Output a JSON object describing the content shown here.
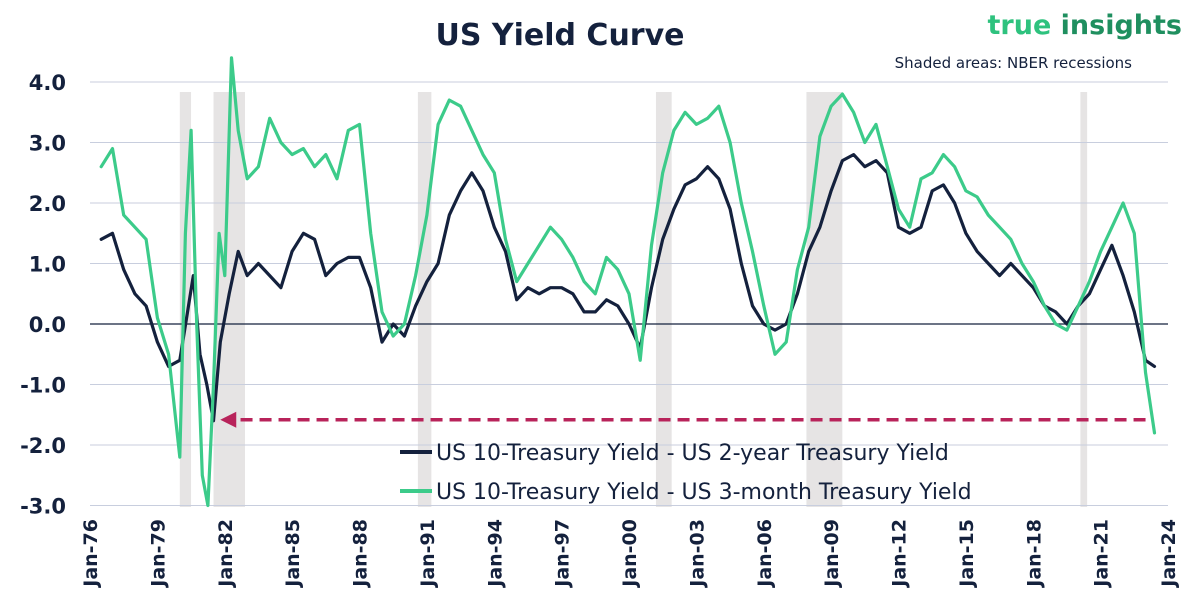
{
  "chart_data": {
    "type": "line",
    "title": "US Yield Curve",
    "note": "Shaded areas: NBER recessions",
    "brand": {
      "part1": "true ",
      "part2": "insights"
    },
    "ylim": [
      -3.0,
      4.5
    ],
    "yticks": [
      4.0,
      3.0,
      2.0,
      1.0,
      0.0,
      -1.0,
      -2.0,
      -3.0
    ],
    "ytick_labels": [
      "4.0",
      "3.0",
      "2.0",
      "1.0",
      "0.0",
      "-1.0",
      "-2.0",
      "-3.0"
    ],
    "xlim": [
      1976.0,
      2024.0
    ],
    "xticks": [
      1976,
      1979,
      1982,
      1985,
      1988,
      1991,
      1994,
      1997,
      2000,
      2003,
      2006,
      2009,
      2012,
      2015,
      2018,
      2021,
      2024
    ],
    "xtick_labels": [
      "Jan-76",
      "Jan-79",
      "Jan-82",
      "Jan-85",
      "Jan-88",
      "Jan-91",
      "Jan-94",
      "Jan-97",
      "Jan-00",
      "Jan-03",
      "Jan-06",
      "Jan-09",
      "Jan-12",
      "Jan-15",
      "Jan-18",
      "Jan-21",
      "Jan-24"
    ],
    "grid": true,
    "recessions": [
      [
        1980.0,
        1980.5
      ],
      [
        1981.5,
        1982.9
      ],
      [
        1990.6,
        1991.2
      ],
      [
        2001.2,
        2001.9
      ],
      [
        2007.9,
        2009.5
      ],
      [
        2020.1,
        2020.4
      ]
    ],
    "arrow": {
      "from_x": 2023.0,
      "to_x": 1981.8,
      "y": -1.5
    },
    "legend_position": "bottom-center",
    "colors": {
      "series_2y": "#14213d",
      "series_3m": "#3ccb8a",
      "recession": "#e6e4e4",
      "arrow": "#b8235a",
      "grid": "#c8cede",
      "zero": "#14213d"
    },
    "series": [
      {
        "name": "US 10-Treasury Yield - US 2-year Treasury Yield",
        "color": "#14213d",
        "x": [
          1976.5,
          1977.0,
          1977.5,
          1978.0,
          1978.5,
          1979.0,
          1979.5,
          1980.0,
          1980.3,
          1980.6,
          1980.9,
          1981.2,
          1981.5,
          1981.8,
          1982.2,
          1982.6,
          1983.0,
          1983.5,
          1984.0,
          1984.5,
          1985.0,
          1985.5,
          1986.0,
          1986.5,
          1987.0,
          1987.5,
          1988.0,
          1988.5,
          1989.0,
          1989.5,
          1990.0,
          1990.5,
          1991.0,
          1991.5,
          1992.0,
          1992.5,
          1993.0,
          1993.5,
          1994.0,
          1994.5,
          1995.0,
          1995.5,
          1996.0,
          1996.5,
          1997.0,
          1997.5,
          1998.0,
          1998.5,
          1999.0,
          1999.5,
          2000.0,
          2000.5,
          2001.0,
          2001.5,
          2002.0,
          2002.5,
          2003.0,
          2003.5,
          2004.0,
          2004.5,
          2005.0,
          2005.5,
          2006.0,
          2006.5,
          2007.0,
          2007.5,
          2008.0,
          2008.5,
          2009.0,
          2009.5,
          2010.0,
          2010.5,
          2011.0,
          2011.5,
          2012.0,
          2012.5,
          2013.0,
          2013.5,
          2014.0,
          2014.5,
          2015.0,
          2015.5,
          2016.0,
          2016.5,
          2017.0,
          2017.5,
          2018.0,
          2018.5,
          2019.0,
          2019.5,
          2020.0,
          2020.5,
          2021.0,
          2021.5,
          2022.0,
          2022.5,
          2023.0,
          2023.4
        ],
        "values": [
          1.4,
          1.5,
          0.9,
          0.5,
          0.3,
          -0.3,
          -0.7,
          -0.6,
          0.1,
          0.8,
          -0.5,
          -1.0,
          -1.6,
          -0.3,
          0.5,
          1.2,
          0.8,
          1.0,
          0.8,
          0.6,
          1.2,
          1.5,
          1.4,
          0.8,
          1.0,
          1.1,
          1.1,
          0.6,
          -0.3,
          0.0,
          -0.2,
          0.3,
          0.7,
          1.0,
          1.8,
          2.2,
          2.5,
          2.2,
          1.6,
          1.2,
          0.4,
          0.6,
          0.5,
          0.6,
          0.6,
          0.5,
          0.2,
          0.2,
          0.4,
          0.3,
          0.0,
          -0.4,
          0.6,
          1.4,
          1.9,
          2.3,
          2.4,
          2.6,
          2.4,
          1.9,
          1.0,
          0.3,
          0.0,
          -0.1,
          0.0,
          0.5,
          1.2,
          1.6,
          2.2,
          2.7,
          2.8,
          2.6,
          2.7,
          2.5,
          1.6,
          1.5,
          1.6,
          2.2,
          2.3,
          2.0,
          1.5,
          1.2,
          1.0,
          0.8,
          1.0,
          0.8,
          0.6,
          0.3,
          0.2,
          0.0,
          0.3,
          0.5,
          0.9,
          1.3,
          0.8,
          0.2,
          -0.6,
          -0.7
        ]
      },
      {
        "name": "US 10-Treasury Yield - US 3-month Treasury Yield",
        "color": "#3ccb8a",
        "x": [
          1976.5,
          1977.0,
          1977.5,
          1978.0,
          1978.5,
          1979.0,
          1979.5,
          1980.0,
          1980.25,
          1980.5,
          1980.75,
          1981.0,
          1981.25,
          1981.5,
          1981.75,
          1982.0,
          1982.3,
          1982.6,
          1983.0,
          1983.5,
          1984.0,
          1984.5,
          1985.0,
          1985.5,
          1986.0,
          1986.5,
          1987.0,
          1987.5,
          1988.0,
          1988.5,
          1989.0,
          1989.5,
          1990.0,
          1990.5,
          1991.0,
          1991.5,
          1992.0,
          1992.5,
          1993.0,
          1993.5,
          1994.0,
          1994.5,
          1995.0,
          1995.5,
          1996.0,
          1996.5,
          1997.0,
          1997.5,
          1998.0,
          1998.5,
          1999.0,
          1999.5,
          2000.0,
          2000.5,
          2001.0,
          2001.5,
          2002.0,
          2002.5,
          2003.0,
          2003.5,
          2004.0,
          2004.5,
          2005.0,
          2005.5,
          2006.0,
          2006.5,
          2007.0,
          2007.5,
          2008.0,
          2008.5,
          2009.0,
          2009.5,
          2010.0,
          2010.5,
          2011.0,
          2011.5,
          2012.0,
          2012.5,
          2013.0,
          2013.5,
          2014.0,
          2014.5,
          2015.0,
          2015.5,
          2016.0,
          2016.5,
          2017.0,
          2017.5,
          2018.0,
          2018.5,
          2019.0,
          2019.5,
          2020.0,
          2020.5,
          2021.0,
          2021.5,
          2022.0,
          2022.5,
          2023.0,
          2023.4
        ],
        "values": [
          2.6,
          2.9,
          1.8,
          1.6,
          1.4,
          0.1,
          -0.5,
          -2.2,
          1.5,
          3.2,
          0.0,
          -2.5,
          -3.0,
          -1.0,
          1.5,
          0.8,
          4.4,
          3.2,
          2.4,
          2.6,
          3.4,
          3.0,
          2.8,
          2.9,
          2.6,
          2.8,
          2.4,
          3.2,
          3.3,
          1.5,
          0.2,
          -0.2,
          0.0,
          0.8,
          1.8,
          3.3,
          3.7,
          3.6,
          3.2,
          2.8,
          2.5,
          1.4,
          0.7,
          1.0,
          1.3,
          1.6,
          1.4,
          1.1,
          0.7,
          0.5,
          1.1,
          0.9,
          0.5,
          -0.6,
          1.3,
          2.5,
          3.2,
          3.5,
          3.3,
          3.4,
          3.6,
          3.0,
          2.0,
          1.2,
          0.3,
          -0.5,
          -0.3,
          0.9,
          1.6,
          3.1,
          3.6,
          3.8,
          3.5,
          3.0,
          3.3,
          2.6,
          1.9,
          1.6,
          2.4,
          2.5,
          2.8,
          2.6,
          2.2,
          2.1,
          1.8,
          1.6,
          1.4,
          1.0,
          0.7,
          0.3,
          0.0,
          -0.1,
          0.3,
          0.7,
          1.2,
          1.6,
          2.0,
          1.5,
          -0.8,
          -1.8
        ]
      }
    ]
  }
}
